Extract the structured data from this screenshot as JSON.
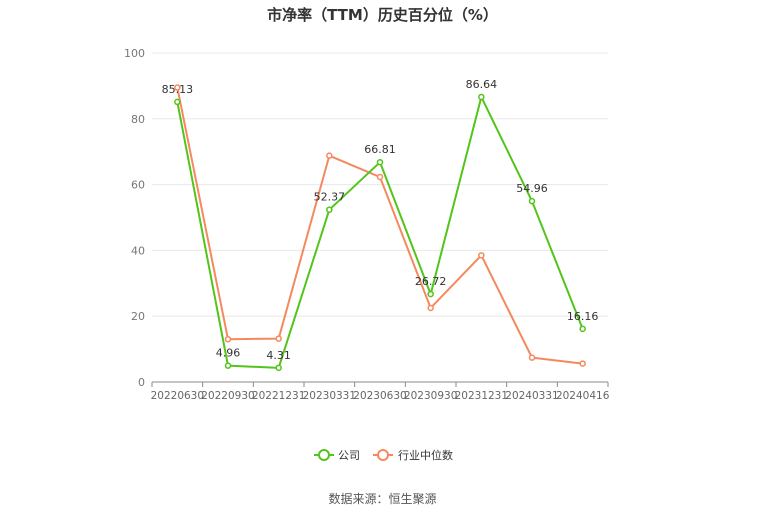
{
  "chart_data": {
    "type": "line",
    "title": "市净率（TTM）历史百分位（%）",
    "source": "数据来源：恒生聚源",
    "categories": [
      "20220630",
      "20220930",
      "20221231",
      "20230331",
      "20230630",
      "20230930",
      "20231231",
      "20240331",
      "20240416"
    ],
    "ylim": [
      0,
      100
    ],
    "yticks": [
      0,
      20,
      40,
      60,
      80,
      100
    ],
    "grid": true,
    "legend_position": "bottom",
    "series": [
      {
        "name": "公司",
        "color": "#52c41a",
        "values": [
          85.13,
          4.96,
          4.31,
          52.37,
          66.81,
          26.72,
          86.64,
          54.96,
          16.16
        ],
        "labels": [
          "85.13",
          "4.96",
          "4.31",
          "52.37",
          "66.81",
          "26.72",
          "86.64",
          "54.96",
          "16.16"
        ]
      },
      {
        "name": "行业中位数",
        "color": "#f4895f",
        "values": [
          89.5,
          13.0,
          13.2,
          68.8,
          62.3,
          22.5,
          38.5,
          7.4,
          5.6
        ]
      }
    ]
  }
}
